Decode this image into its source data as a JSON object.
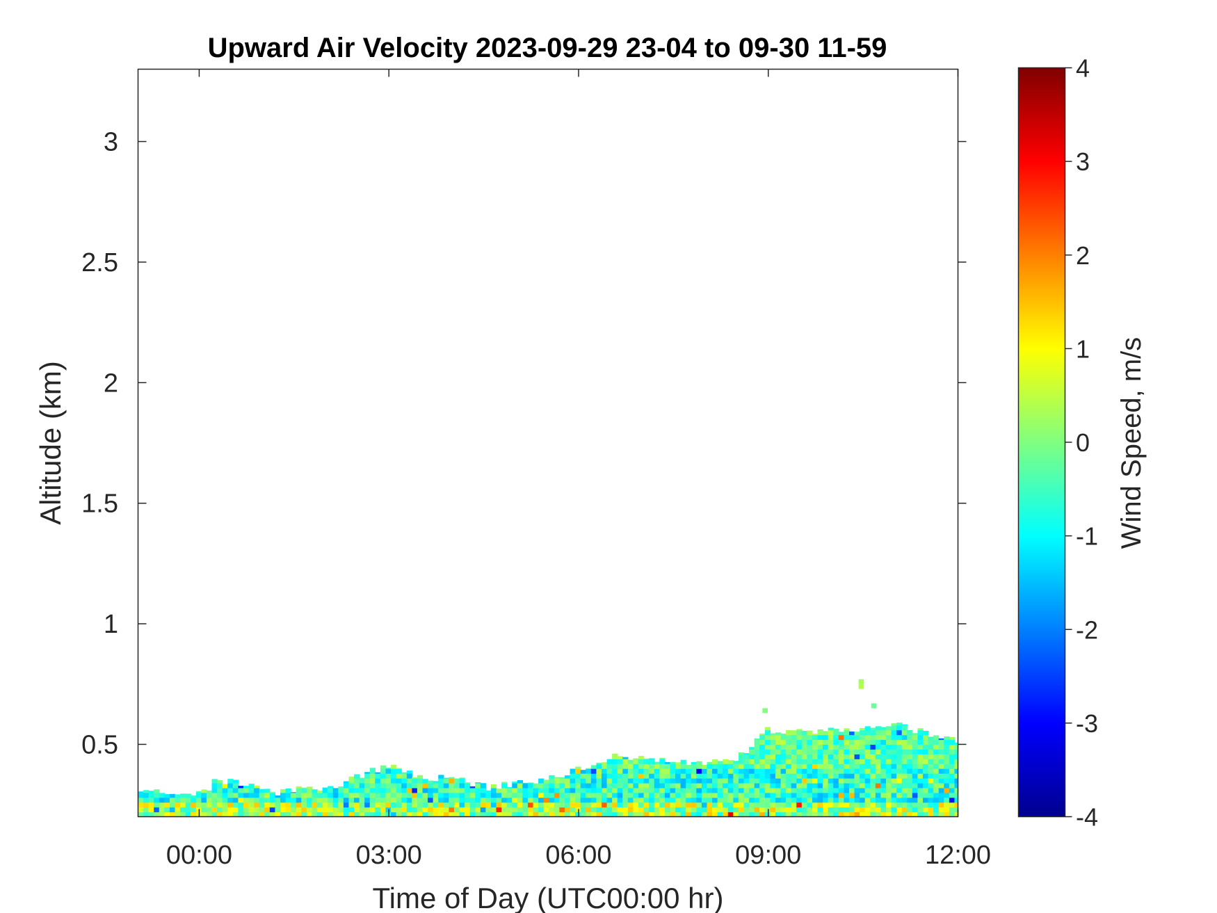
{
  "chart_data": {
    "type": "heatmap",
    "title": "Upward Air Velocity 2023-09-29 23-04 to 09-30 11-59",
    "xlabel": "Time of Day (UTC00:00 hr)",
    "ylabel": "Altitude (km)",
    "colorbar_label": "Wind Speed, m/s",
    "colormap": "jet",
    "x_ticks": [
      "00:00",
      "03:00",
      "06:00",
      "09:00",
      "12:00"
    ],
    "x_tick_hours": [
      0,
      3,
      6,
      9,
      12
    ],
    "xlim_hours": [
      -0.967,
      12.0
    ],
    "y_ticks": [
      "0.5",
      "1",
      "1.5",
      "2",
      "2.5",
      "3"
    ],
    "y_tick_values": [
      0.5,
      1,
      1.5,
      2,
      2.5,
      3
    ],
    "ylim": [
      0.2,
      3.3
    ],
    "colorbar_ticks": [
      "4",
      "3",
      "2",
      "1",
      "0",
      "-1",
      "-2",
      "-3",
      "-4"
    ],
    "colorbar_tick_values": [
      4,
      3,
      2,
      1,
      0,
      -1,
      -2,
      -3,
      -4
    ],
    "clim": [
      -4,
      4
    ],
    "grid": false,
    "data_top_profile": [
      {
        "hour": -0.967,
        "top_km": 0.3
      },
      {
        "hour": 0.17,
        "top_km": 0.3
      },
      {
        "hour": 0.2,
        "top_km": 0.32
      },
      {
        "hour": 0.25,
        "top_km": 0.35
      },
      {
        "hour": 0.9,
        "top_km": 0.33
      },
      {
        "hour": 1.2,
        "top_km": 0.3
      },
      {
        "hour": 2.2,
        "top_km": 0.33
      },
      {
        "hour": 2.5,
        "top_km": 0.37
      },
      {
        "hour": 3.0,
        "top_km": 0.41
      },
      {
        "hour": 3.4,
        "top_km": 0.37
      },
      {
        "hour": 4.2,
        "top_km": 0.35
      },
      {
        "hour": 4.6,
        "top_km": 0.32
      },
      {
        "hour": 5.3,
        "top_km": 0.35
      },
      {
        "hour": 6.4,
        "top_km": 0.42
      },
      {
        "hour": 6.5,
        "top_km": 0.45
      },
      {
        "hour": 7.3,
        "top_km": 0.43
      },
      {
        "hour": 8.0,
        "top_km": 0.42
      },
      {
        "hour": 8.5,
        "top_km": 0.44
      },
      {
        "hour": 8.7,
        "top_km": 0.48
      },
      {
        "hour": 8.95,
        "top_km": 0.56
      },
      {
        "hour": 9.5,
        "top_km": 0.55
      },
      {
        "hour": 10.5,
        "top_km": 0.56
      },
      {
        "hour": 11.0,
        "top_km": 0.58
      },
      {
        "hour": 11.6,
        "top_km": 0.54
      },
      {
        "hour": 12.0,
        "top_km": 0.52
      }
    ],
    "isolated_cells": [
      {
        "hour": 10.47,
        "km": 0.75,
        "value": 0.3
      },
      {
        "hour": 10.47,
        "km": 0.73,
        "value": 0.4
      },
      {
        "hour": 8.95,
        "km": 0.63,
        "value": 0.0
      },
      {
        "hour": 10.67,
        "km": 0.65,
        "value": -0.2
      }
    ],
    "value_bands": [
      {
        "from_km": 0.2,
        "to_km": 0.26,
        "mean": 0.3,
        "spread": 1.2
      },
      {
        "from_km": 0.26,
        "to_km": 0.4,
        "mean": -0.6,
        "spread": 1.0
      },
      {
        "from_km": 0.4,
        "to_km": 0.6,
        "mean": -0.3,
        "spread": 0.8
      }
    ]
  }
}
